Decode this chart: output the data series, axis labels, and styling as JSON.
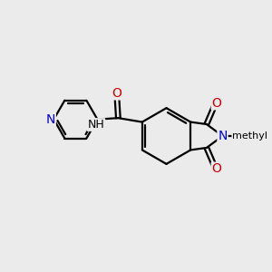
{
  "bg_color": "#ebebeb",
  "bond_color": "#000000",
  "bond_width": 1.6,
  "atom_colors": {
    "N": "#0000cc",
    "O": "#cc0000",
    "C": "#000000"
  },
  "font_size_atom": 10,
  "layout": {
    "xlim": [
      0,
      10
    ],
    "ylim": [
      0,
      10
    ]
  }
}
